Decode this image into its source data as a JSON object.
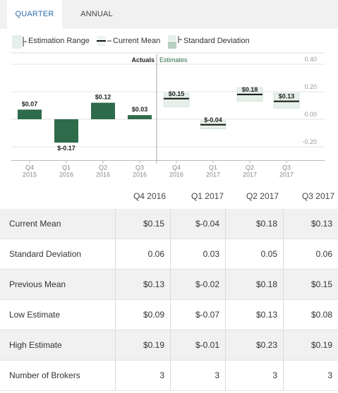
{
  "tabs": [
    {
      "label": "QUARTER",
      "active": true
    },
    {
      "label": "ANNUAL",
      "active": false
    }
  ],
  "legend": {
    "estimation_range": "Estimation Range",
    "current_mean": "Current Mean",
    "standard_deviation": "Standard Deviation"
  },
  "colors": {
    "actual_bar": "#2e6b4b",
    "estimate_fill": "#e6f0ea",
    "estimate_border": "#bcd3c4",
    "mean_line": "#111111",
    "tab_active_text": "#2b6cb0"
  },
  "chart_data": {
    "type": "bar",
    "section_labels": {
      "actuals": "Actuals",
      "estimates": "Estimates"
    },
    "categories": [
      {
        "q": "Q4",
        "y": "2015"
      },
      {
        "q": "Q1",
        "y": "2016"
      },
      {
        "q": "Q2",
        "y": "2016"
      },
      {
        "q": "Q3",
        "y": "2016"
      },
      {
        "q": "Q4",
        "y": "2016"
      },
      {
        "q": "Q1",
        "y": "2017"
      },
      {
        "q": "Q2",
        "y": "2017"
      },
      {
        "q": "Q3",
        "y": "2017"
      }
    ],
    "actuals": [
      {
        "value": 0.07,
        "label": "$0.07"
      },
      {
        "value": -0.17,
        "label": "$-0.17"
      },
      {
        "value": 0.12,
        "label": "$0.12"
      },
      {
        "value": 0.03,
        "label": "$0.03"
      }
    ],
    "estimates": [
      {
        "mean": 0.15,
        "sd": 0.06,
        "low": 0.09,
        "high": 0.19,
        "label": "$0.15"
      },
      {
        "mean": -0.04,
        "sd": 0.03,
        "low": -0.07,
        "high": -0.01,
        "label": "$-0.04"
      },
      {
        "mean": 0.18,
        "sd": 0.05,
        "low": 0.13,
        "high": 0.23,
        "label": "$0.18"
      },
      {
        "mean": 0.13,
        "sd": 0.06,
        "low": 0.08,
        "high": 0.19,
        "label": "$0.13"
      }
    ],
    "y_ticks": [
      {
        "value": 0.4,
        "label": "0.40"
      },
      {
        "value": 0.2,
        "label": "0.20"
      },
      {
        "value": 0.0,
        "label": "0.00"
      },
      {
        "value": -0.2,
        "label": "-0.20"
      }
    ],
    "ylim": [
      -0.3,
      0.4
    ],
    "grid": true,
    "y_axis_side": "right"
  },
  "table": {
    "columns": [
      "Q4 2016",
      "Q1 2017",
      "Q2 2017",
      "Q3 2017"
    ],
    "rows": [
      {
        "label": "Current Mean",
        "values": [
          "$0.15",
          "$-0.04",
          "$0.18",
          "$0.13"
        ]
      },
      {
        "label": "Standard Deviation",
        "values": [
          "0.06",
          "0.03",
          "0.05",
          "0.06"
        ]
      },
      {
        "label": "Previous Mean",
        "values": [
          "$0.13",
          "$-0.02",
          "$0.18",
          "$0.15"
        ]
      },
      {
        "label": "Low Estimate",
        "values": [
          "$0.09",
          "$-0.07",
          "$0.13",
          "$0.08"
        ]
      },
      {
        "label": "High Estimate",
        "values": [
          "$0.19",
          "$-0.01",
          "$0.23",
          "$0.19"
        ]
      },
      {
        "label": "Number of Brokers",
        "values": [
          "3",
          "3",
          "3",
          "3"
        ]
      }
    ]
  }
}
